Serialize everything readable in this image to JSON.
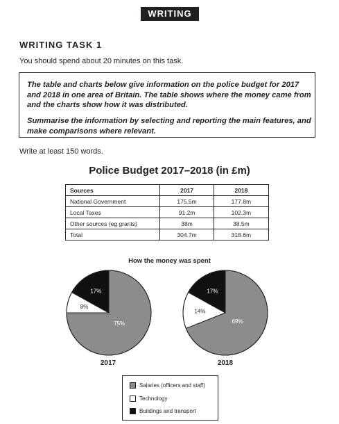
{
  "header": {
    "section_label": "WRITING"
  },
  "task": {
    "heading": "WRITING TASK 1",
    "time_note": "You should spend about 20 minutes on this task.",
    "prompt_paragraph_1": "The table and charts below give information on the police budget for 2017 and 2018 in one area of Britain. The table shows where the money came from and the charts show how it was distributed.",
    "prompt_paragraph_2": "Summarise the information by selecting and reporting the main features, and make comparisons where relevant.",
    "word_count_note": "Write at least 150 words."
  },
  "budget_table": {
    "title": "Police Budget 2017–2018 (in £m)",
    "headers": [
      "Sources",
      "2017",
      "2018"
    ],
    "rows": [
      [
        "National Government",
        "175.5m",
        "177.8m"
      ],
      [
        "Local Taxes",
        "91.2m",
        "102.3m"
      ],
      [
        "Other sources (eg grants)",
        "38m",
        "38.5m"
      ],
      [
        "Total",
        "304.7m",
        "318.6m"
      ]
    ]
  },
  "chart_data": [
    {
      "type": "pie",
      "title": "How the money was spent",
      "subtitle": "2017",
      "categories": [
        "Salaries (officers and staff)",
        "Technology",
        "Buildings and transport"
      ],
      "values": [
        75,
        8,
        17
      ],
      "labels": [
        "75%",
        "8%",
        "17%"
      ],
      "colors": [
        "#8c8c8c",
        "#ffffff",
        "#111111"
      ]
    },
    {
      "type": "pie",
      "title": "How the money was spent",
      "subtitle": "2018",
      "categories": [
        "Salaries (officers and staff)",
        "Technology",
        "Buildings and transport"
      ],
      "values": [
        69,
        14,
        17
      ],
      "labels": [
        "69%",
        "14%",
        "17%"
      ],
      "colors": [
        "#8c8c8c",
        "#ffffff",
        "#111111"
      ]
    }
  ],
  "charts": {
    "title": "How the money was spent",
    "legend": [
      {
        "label": "Salaries (officers and staff)",
        "color": "#8c8c8c"
      },
      {
        "label": "Technology",
        "color": "#ffffff"
      },
      {
        "label": "Buildings and transport",
        "color": "#111111"
      }
    ]
  }
}
